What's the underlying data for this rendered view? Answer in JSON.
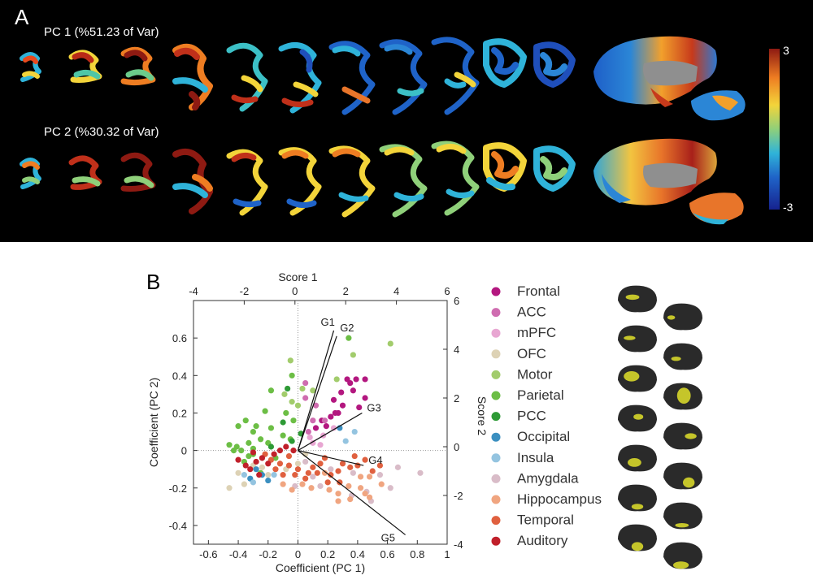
{
  "panel_a": {
    "letter": "A",
    "pc1_label": "PC 1 (%51.23 of Var)",
    "pc2_label": "PC 2 (%30.32 of Var)",
    "colorbar": {
      "max_label": "3",
      "min_label": "-3"
    }
  },
  "panel_b": {
    "letter": "B"
  },
  "chart_data": {
    "type": "scatter",
    "xlabel": "Coefficient (PC 1)",
    "ylabel": "Coefficient (PC 2)",
    "x2label": "Score 1",
    "y2label": "Score 2",
    "xlim": [
      -0.7,
      1.0
    ],
    "ylim": [
      -0.5,
      0.8
    ],
    "x2lim": [
      -4,
      6
    ],
    "y2lim": [
      -4,
      6
    ],
    "xticks": [
      -0.6,
      -0.4,
      -0.2,
      0,
      0.2,
      0.4,
      0.6,
      0.8,
      1
    ],
    "xtick_labels": [
      "-0.6",
      "-0.4",
      "-0.2",
      "0",
      "0.2",
      "0.4",
      "0.6",
      "0.8",
      "1"
    ],
    "yticks": [
      -0.4,
      -0.2,
      0,
      0.2,
      0.4,
      0.6
    ],
    "ytick_labels": [
      "-0.4",
      "-0.2",
      "0",
      "0.2",
      "0.4",
      "0.6"
    ],
    "x2ticks": [
      -4,
      -2,
      0,
      2,
      4,
      6
    ],
    "x2tick_labels": [
      "-4",
      "-2",
      "0",
      "2",
      "4",
      "6"
    ],
    "y2ticks": [
      -4,
      -2,
      0,
      2,
      4,
      6
    ],
    "y2tick_labels": [
      "-4",
      "-2",
      "0",
      "2",
      "4",
      "6"
    ],
    "vectors": [
      {
        "name": "G1",
        "x": 0.24,
        "y": 0.64
      },
      {
        "name": "G2",
        "x": 0.26,
        "y": 0.61
      },
      {
        "name": "G3",
        "x": 0.43,
        "y": 0.2
      },
      {
        "name": "G4",
        "x": 0.44,
        "y": -0.08
      },
      {
        "name": "G5",
        "x": 0.72,
        "y": -0.45
      }
    ],
    "legend_position": "right",
    "series": [
      {
        "name": "Frontal",
        "color": "#b3177f",
        "points": [
          [
            0.33,
            0.38
          ],
          [
            0.39,
            0.38
          ],
          [
            0.45,
            0.38
          ],
          [
            0.37,
            0.32
          ],
          [
            0.29,
            0.31
          ],
          [
            0.45,
            0.28
          ],
          [
            0.24,
            0.27
          ],
          [
            0.3,
            0.24
          ],
          [
            0.41,
            0.23
          ],
          [
            0.27,
            0.2
          ],
          [
            0.22,
            0.18
          ],
          [
            0.16,
            0.16
          ],
          [
            0.19,
            0.13
          ],
          [
            0.12,
            0.12
          ],
          [
            0.25,
            0.2
          ],
          [
            0.35,
            0.36
          ]
        ]
      },
      {
        "name": "ACC",
        "color": "#cf6cb0",
        "points": [
          [
            0.05,
            0.36
          ],
          [
            0.05,
            0.28
          ],
          [
            0.12,
            0.24
          ],
          [
            0.1,
            0.16
          ],
          [
            0.07,
            0.1
          ],
          [
            0.18,
            0.16
          ]
        ]
      },
      {
        "name": "mPFC",
        "color": "#e8a6d2",
        "points": [
          [
            0.17,
            0.08
          ],
          [
            0.24,
            0.12
          ],
          [
            0.08,
            0.07
          ],
          [
            0.1,
            0.04
          ],
          [
            0.15,
            0.03
          ]
        ]
      },
      {
        "name": "OFC",
        "color": "#ddd2b5",
        "points": [
          [
            -0.46,
            -0.2
          ],
          [
            -0.4,
            -0.12
          ],
          [
            -0.36,
            -0.18
          ],
          [
            -0.3,
            -0.08
          ],
          [
            -0.24,
            -0.09
          ],
          [
            -0.2,
            -0.13
          ],
          [
            -0.08,
            -0.1
          ],
          [
            0.0,
            -0.07
          ],
          [
            0.05,
            -0.02
          ]
        ]
      },
      {
        "name": "Motor",
        "color": "#a2cc6c",
        "points": [
          [
            0.62,
            0.57
          ],
          [
            0.37,
            0.51
          ],
          [
            -0.05,
            0.48
          ],
          [
            0.03,
            0.33
          ],
          [
            -0.09,
            0.3
          ],
          [
            -0.04,
            0.26
          ],
          [
            0.0,
            0.24
          ],
          [
            0.1,
            0.32
          ],
          [
            0.26,
            0.38
          ]
        ]
      },
      {
        "name": "Parietal",
        "color": "#6cbe45",
        "points": [
          [
            0.34,
            0.6
          ],
          [
            -0.04,
            0.4
          ],
          [
            -0.18,
            0.32
          ],
          [
            -0.08,
            0.2
          ],
          [
            -0.03,
            0.16
          ],
          [
            -0.22,
            0.21
          ],
          [
            -0.35,
            0.16
          ],
          [
            -0.4,
            0.13
          ],
          [
            -0.3,
            0.1
          ],
          [
            -0.25,
            0.06
          ],
          [
            -0.33,
            0.04
          ],
          [
            -0.41,
            0.02
          ],
          [
            -0.46,
            0.03
          ],
          [
            -0.38,
            0.0
          ],
          [
            -0.3,
            0.01
          ],
          [
            -0.2,
            0.04
          ],
          [
            -0.1,
            0.08
          ],
          [
            -0.05,
            0.06
          ],
          [
            -0.15,
            -0.04
          ],
          [
            -0.3,
            -0.02
          ],
          [
            -0.36,
            -0.06
          ],
          [
            -0.25,
            -0.12
          ],
          [
            -0.43,
            0.0
          ],
          [
            -0.33,
            -0.03
          ],
          [
            -0.28,
            0.13
          ],
          [
            -0.18,
            0.12
          ]
        ]
      },
      {
        "name": "PCC",
        "color": "#2e9a36",
        "points": [
          [
            -0.07,
            0.33
          ],
          [
            -0.1,
            0.15
          ],
          [
            -0.18,
            0.02
          ],
          [
            0.02,
            0.09
          ],
          [
            -0.04,
            0.05
          ]
        ]
      },
      {
        "name": "Occipital",
        "color": "#3b8fc0",
        "points": [
          [
            -0.32,
            -0.15
          ],
          [
            -0.28,
            -0.1
          ],
          [
            -0.24,
            -0.13
          ],
          [
            -0.2,
            -0.16
          ],
          [
            0.28,
            0.12
          ]
        ]
      },
      {
        "name": "Insula",
        "color": "#94c4e0",
        "points": [
          [
            -0.36,
            -0.13
          ],
          [
            -0.3,
            -0.17
          ],
          [
            -0.16,
            -0.13
          ],
          [
            0.38,
            0.1
          ],
          [
            0.32,
            0.05
          ]
        ]
      },
      {
        "name": "Amygdala",
        "color": "#d9bcc8",
        "points": [
          [
            0.82,
            -0.12
          ],
          [
            0.67,
            -0.09
          ],
          [
            0.55,
            -0.13
          ],
          [
            0.62,
            -0.2
          ],
          [
            0.46,
            -0.22
          ],
          [
            0.49,
            -0.27
          ],
          [
            0.37,
            -0.12
          ],
          [
            0.36,
            -0.24
          ],
          [
            0.15,
            -0.19
          ],
          [
            -0.02,
            -0.19
          ],
          [
            0.1,
            -0.14
          ],
          [
            0.22,
            -0.1
          ],
          [
            0.05,
            -0.06
          ]
        ]
      },
      {
        "name": "Hippocampus",
        "color": "#f0a580",
        "points": [
          [
            -0.1,
            -0.18
          ],
          [
            -0.04,
            -0.21
          ],
          [
            0.03,
            -0.18
          ],
          [
            0.09,
            -0.2
          ],
          [
            0.21,
            -0.21
          ],
          [
            0.27,
            -0.23
          ],
          [
            0.34,
            -0.19
          ],
          [
            0.42,
            -0.2
          ],
          [
            0.45,
            -0.23
          ],
          [
            0.48,
            -0.25
          ],
          [
            0.56,
            -0.18
          ],
          [
            0.42,
            -0.14
          ],
          [
            0.27,
            -0.27
          ],
          [
            0.48,
            -0.14
          ],
          [
            0.35,
            -0.26
          ],
          [
            0.18,
            -0.12
          ]
        ]
      },
      {
        "name": "Temporal",
        "color": "#e0603f",
        "points": [
          [
            0.5,
            -0.11
          ],
          [
            0.55,
            -0.08
          ],
          [
            0.45,
            -0.05
          ],
          [
            0.38,
            -0.03
          ],
          [
            0.35,
            -0.09
          ],
          [
            0.3,
            -0.07
          ],
          [
            0.27,
            -0.11
          ],
          [
            0.22,
            -0.13
          ],
          [
            0.2,
            -0.17
          ],
          [
            0.15,
            -0.07
          ],
          [
            0.13,
            -0.12
          ],
          [
            0.1,
            -0.09
          ],
          [
            0.07,
            -0.12
          ],
          [
            0.05,
            -0.15
          ],
          [
            -0.02,
            -0.13
          ],
          [
            0.0,
            -0.1
          ],
          [
            -0.06,
            -0.08
          ],
          [
            -0.12,
            -0.07
          ],
          [
            -0.15,
            -0.1
          ],
          [
            -0.1,
            -0.13
          ],
          [
            -0.18,
            -0.05
          ],
          [
            -0.22,
            -0.02
          ],
          [
            -0.06,
            -0.03
          ],
          [
            0.18,
            -0.04
          ],
          [
            0.28,
            -0.17
          ],
          [
            0.4,
            -0.08
          ]
        ]
      },
      {
        "name": "Auditory",
        "color": "#c0202a",
        "points": [
          [
            -0.4,
            -0.05
          ],
          [
            -0.35,
            -0.08
          ],
          [
            -0.32,
            -0.1
          ],
          [
            -0.28,
            -0.06
          ],
          [
            -0.24,
            -0.04
          ],
          [
            -0.2,
            -0.07
          ],
          [
            -0.16,
            -0.02
          ],
          [
            -0.12,
            0.0
          ],
          [
            -0.08,
            0.02
          ],
          [
            -0.03,
            0.0
          ],
          [
            -0.26,
            -0.13
          ],
          [
            -0.3,
            -0.01
          ]
        ]
      }
    ]
  }
}
